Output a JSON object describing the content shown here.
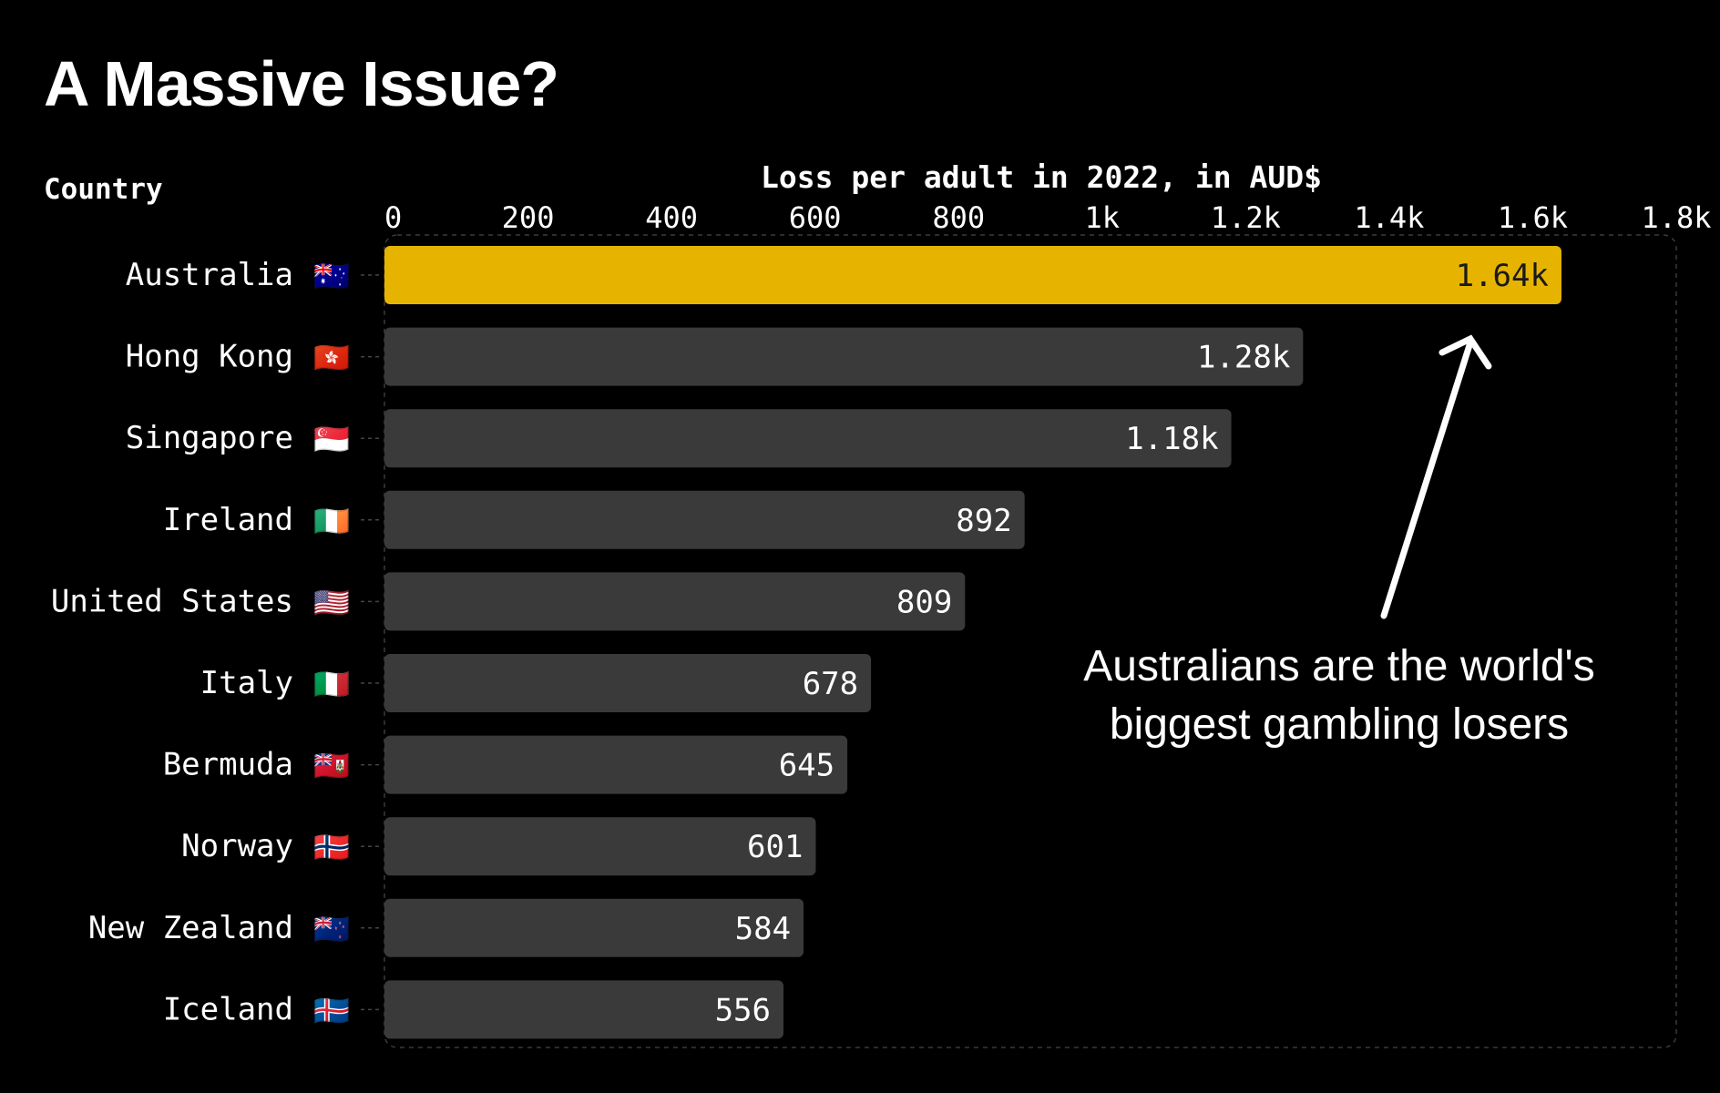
{
  "title": "A Massive Issue?",
  "chart_data": {
    "type": "bar",
    "orientation": "horizontal",
    "title": "A Massive Issue?",
    "xlabel": "Loss per adult in 2022, in AUD$",
    "ylabel": "Country",
    "xlim": [
      0,
      1800
    ],
    "ticks": [
      0,
      200,
      400,
      600,
      800,
      1000,
      1200,
      1400,
      1600,
      1800
    ],
    "tick_labels": [
      "0",
      "200",
      "400",
      "600",
      "800",
      "1k",
      "1.2k",
      "1.4k",
      "1.6k",
      "1.8k"
    ],
    "categories": [
      "Australia",
      "Hong Kong",
      "Singapore",
      "Ireland",
      "United States",
      "Italy",
      "Bermuda",
      "Norway",
      "New Zealand",
      "Iceland"
    ],
    "flags": [
      "🇦🇺",
      "🇭🇰",
      "🇸🇬",
      "🇮🇪",
      "🇺🇸",
      "🇮🇹",
      "🇧🇲",
      "🇳🇴",
      "🇳🇿",
      "🇮🇸"
    ],
    "values": [
      1640,
      1280,
      1180,
      892,
      809,
      678,
      645,
      601,
      584,
      556
    ],
    "value_labels": [
      "1.64k",
      "1.28k",
      "1.18k",
      "892",
      "809",
      "678",
      "645",
      "601",
      "584",
      "556"
    ],
    "highlight_index": 0,
    "colors": {
      "highlight": "#e6b400",
      "bar": "#3a3a3a",
      "background": "#000000",
      "text": "#ffffff",
      "label_on_highlight": "#1a1a1a",
      "label_on_bar": "#ffffff",
      "arrow": "#ffffff"
    },
    "annotation": {
      "lines": [
        "Australians are the world's",
        "biggest gambling losers"
      ],
      "points_to": "Australia"
    }
  }
}
